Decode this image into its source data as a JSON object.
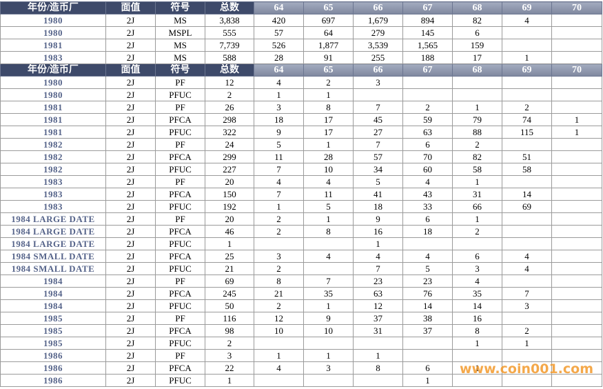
{
  "sections": [
    {
      "header": [
        "年份/造币厂",
        "面值",
        "符号",
        "总数",
        "64",
        "65",
        "66",
        "67",
        "68",
        "69",
        "70"
      ],
      "rows": [
        [
          "1980",
          "2J",
          "MS",
          "3,838",
          "420",
          "697",
          "1,679",
          "894",
          "82",
          "4",
          null
        ],
        [
          "1980",
          "2J",
          "MSPL",
          "555",
          "57",
          "64",
          "279",
          "145",
          "6",
          null,
          null
        ],
        [
          "1981",
          "2J",
          "MS",
          "7,739",
          "526",
          "1,877",
          "3,539",
          "1,565",
          "159",
          null,
          null
        ],
        [
          "1983",
          "2J",
          "MS",
          "588",
          "28",
          "91",
          "255",
          "188",
          "17",
          "1",
          null
        ]
      ]
    },
    {
      "header": [
        "年份/造币厂",
        "面值",
        "符号",
        "总数",
        "64",
        "65",
        "66",
        "67",
        "68",
        "69",
        "70"
      ],
      "rows": [
        [
          "1980",
          "2J",
          "PF",
          "12",
          "4",
          "2",
          "3",
          null,
          null,
          null,
          null
        ],
        [
          "1980",
          "2J",
          "PFUC",
          "2",
          "1",
          "1",
          null,
          null,
          null,
          null,
          null
        ],
        [
          "1981",
          "2J",
          "PF",
          "26",
          "3",
          "8",
          "7",
          "2",
          "1",
          "2",
          null
        ],
        [
          "1981",
          "2J",
          "PFCA",
          "298",
          "18",
          "17",
          "45",
          "59",
          "79",
          "74",
          "1"
        ],
        [
          "1981",
          "2J",
          "PFUC",
          "322",
          "9",
          "17",
          "27",
          "63",
          "88",
          "115",
          "1"
        ],
        [
          "1982",
          "2J",
          "PF",
          "24",
          "5",
          "1",
          "7",
          "6",
          "2",
          null,
          null
        ],
        [
          "1982",
          "2J",
          "PFCA",
          "299",
          "11",
          "28",
          "57",
          "70",
          "82",
          "51",
          null
        ],
        [
          "1982",
          "2J",
          "PFUC",
          "227",
          "7",
          "10",
          "34",
          "60",
          "58",
          "58",
          null
        ],
        [
          "1983",
          "2J",
          "PF",
          "20",
          "4",
          "4",
          "5",
          "4",
          "1",
          null,
          null
        ],
        [
          "1983",
          "2J",
          "PFCA",
          "150",
          "7",
          "11",
          "41",
          "43",
          "31",
          "14",
          null
        ],
        [
          "1983",
          "2J",
          "PFUC",
          "192",
          "1",
          "5",
          "18",
          "33",
          "66",
          "69",
          null
        ],
        [
          "1984 LARGE DATE",
          "2J",
          "PF",
          "20",
          "2",
          "1",
          "9",
          "6",
          "1",
          null,
          null
        ],
        [
          "1984 LARGE DATE",
          "2J",
          "PFCA",
          "46",
          "2",
          "8",
          "16",
          "18",
          "2",
          null,
          null
        ],
        [
          "1984 LARGE DATE",
          "2J",
          "PFUC",
          "1",
          null,
          null,
          "1",
          null,
          null,
          null,
          null
        ],
        [
          "1984 SMALL DATE",
          "2J",
          "PFCA",
          "25",
          "3",
          "4",
          "4",
          "4",
          "6",
          "4",
          null
        ],
        [
          "1984 SMALL DATE",
          "2J",
          "PFUC",
          "21",
          "2",
          null,
          "7",
          "5",
          "3",
          "4",
          null
        ],
        [
          "1984",
          "2J",
          "PF",
          "69",
          "8",
          "7",
          "23",
          "23",
          "4",
          null,
          null
        ],
        [
          "1984",
          "2J",
          "PFCA",
          "245",
          "21",
          "35",
          "63",
          "76",
          "35",
          "7",
          null
        ],
        [
          "1984",
          "2J",
          "PFUC",
          "50",
          "2",
          "1",
          "12",
          "14",
          "14",
          "3",
          null
        ],
        [
          "1985",
          "2J",
          "PF",
          "116",
          "12",
          "9",
          "37",
          "38",
          "16",
          null,
          null
        ],
        [
          "1985",
          "2J",
          "PFCA",
          "98",
          "10",
          "10",
          "31",
          "37",
          "8",
          "2",
          null
        ],
        [
          "1985",
          "2J",
          "PFUC",
          "2",
          null,
          null,
          null,
          null,
          "1",
          "1",
          null
        ],
        [
          "1986",
          "2J",
          "PF",
          "3",
          "1",
          "1",
          "1",
          null,
          null,
          null,
          null
        ],
        [
          "1986",
          "2J",
          "PFCA",
          "22",
          "4",
          "3",
          "8",
          "6",
          "1",
          null,
          null
        ],
        [
          "1986",
          "2J",
          "PFUC",
          "1",
          null,
          null,
          null,
          "1",
          null,
          null,
          null
        ]
      ]
    }
  ],
  "watermark": "www.coin001.com"
}
